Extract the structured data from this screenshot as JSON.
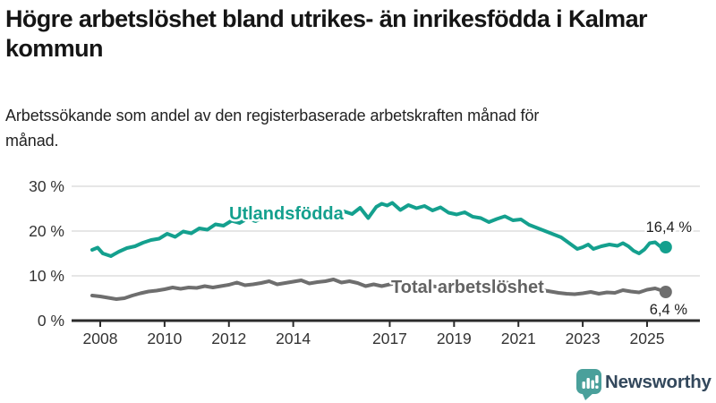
{
  "title": "Högre arbetslöshet bland utrikes- än inrikesfödda i Kalmar kommun",
  "subtitle": "Arbetssökande som andel av den registerbaserade arbetskraften månad för månad.",
  "branding": {
    "logo_text": "Newsworthy"
  },
  "colors": {
    "series_foreign": "#14a08e",
    "series_total": "#6e6e6e",
    "series_total_label": "#636363",
    "grid": "#d8d8d8",
    "axis": "#2b2b2b",
    "tick_label": "#333333",
    "end_label": "#1d1d1d",
    "logo_teal": "#4aa09b",
    "logo_text": "#33485c"
  },
  "chart_data": {
    "type": "line",
    "title": "Högre arbetslöshet bland utrikes- än inrikesfödda i Kalmar kommun",
    "subtitle": "Arbetssökande som andel av den registerbaserade arbetskraften månad för månad.",
    "unit": "%",
    "ylim": [
      0,
      30
    ],
    "grid": "horizontal",
    "legend_position": "inline-labels",
    "y_ticks": [
      {
        "value": 0,
        "label": "0 %"
      },
      {
        "value": 10,
        "label": "10 %"
      },
      {
        "value": 20,
        "label": "20 %"
      },
      {
        "value": 30,
        "label": "30 %"
      }
    ],
    "x_ticks": [
      {
        "value": 2008,
        "label": "2008"
      },
      {
        "value": 2010,
        "label": "2010"
      },
      {
        "value": 2012,
        "label": "2012"
      },
      {
        "value": 2014,
        "label": "2014"
      },
      {
        "value": 2017,
        "label": "2017"
      },
      {
        "value": 2019,
        "label": "2019"
      },
      {
        "value": 2021,
        "label": "2021"
      },
      {
        "value": 2023,
        "label": "2023"
      },
      {
        "value": 2025,
        "label": "2025"
      }
    ],
    "series": [
      {
        "name": "Utlandsfödda",
        "slug": "utlandsfodda",
        "color": "#14a08e",
        "end_label": "16,4 %",
        "last_value": 16.4,
        "points": [
          [
            2007.75,
            15.8
          ],
          [
            2007.92,
            16.3
          ],
          [
            2008.08,
            15.0
          ],
          [
            2008.33,
            14.4
          ],
          [
            2008.58,
            15.4
          ],
          [
            2008.83,
            16.2
          ],
          [
            2009.08,
            16.6
          ],
          [
            2009.33,
            17.4
          ],
          [
            2009.58,
            18.0
          ],
          [
            2009.83,
            18.3
          ],
          [
            2010.08,
            19.4
          ],
          [
            2010.33,
            18.7
          ],
          [
            2010.58,
            19.9
          ],
          [
            2010.83,
            19.5
          ],
          [
            2011.08,
            20.6
          ],
          [
            2011.33,
            20.3
          ],
          [
            2011.58,
            21.5
          ],
          [
            2011.83,
            21.2
          ],
          [
            2012.08,
            22.3
          ],
          [
            2012.33,
            21.8
          ],
          [
            2012.58,
            22.8
          ],
          [
            2012.83,
            22.2
          ],
          [
            2013.08,
            23.2
          ],
          [
            2013.33,
            22.5
          ],
          [
            2013.58,
            23.4
          ],
          [
            2013.83,
            22.8
          ],
          [
            2014.08,
            23.6
          ],
          [
            2014.33,
            23.0
          ],
          [
            2014.58,
            23.9
          ],
          [
            2014.83,
            23.3
          ],
          [
            2015.08,
            24.2
          ],
          [
            2015.33,
            23.6
          ],
          [
            2015.58,
            24.4
          ],
          [
            2015.83,
            23.8
          ],
          [
            2016.08,
            25.2
          ],
          [
            2016.33,
            22.9
          ],
          [
            2016.58,
            25.4
          ],
          [
            2016.75,
            26.1
          ],
          [
            2016.92,
            25.7
          ],
          [
            2017.08,
            26.3
          ],
          [
            2017.33,
            24.7
          ],
          [
            2017.58,
            25.8
          ],
          [
            2017.83,
            25.1
          ],
          [
            2018.08,
            25.6
          ],
          [
            2018.33,
            24.6
          ],
          [
            2018.58,
            25.3
          ],
          [
            2018.83,
            24.1
          ],
          [
            2019.08,
            23.7
          ],
          [
            2019.33,
            24.2
          ],
          [
            2019.58,
            23.2
          ],
          [
            2019.83,
            22.9
          ],
          [
            2020.08,
            22.0
          ],
          [
            2020.33,
            22.7
          ],
          [
            2020.58,
            23.3
          ],
          [
            2020.83,
            22.4
          ],
          [
            2021.08,
            22.6
          ],
          [
            2021.33,
            21.4
          ],
          [
            2021.58,
            20.7
          ],
          [
            2021.83,
            20.0
          ],
          [
            2022.08,
            19.3
          ],
          [
            2022.33,
            18.6
          ],
          [
            2022.58,
            17.3
          ],
          [
            2022.83,
            16.0
          ],
          [
            2023.0,
            16.4
          ],
          [
            2023.17,
            17.0
          ],
          [
            2023.33,
            16.0
          ],
          [
            2023.58,
            16.6
          ],
          [
            2023.83,
            17.0
          ],
          [
            2024.08,
            16.7
          ],
          [
            2024.25,
            17.3
          ],
          [
            2024.42,
            16.6
          ],
          [
            2024.58,
            15.6
          ],
          [
            2024.75,
            15.0
          ],
          [
            2024.92,
            15.9
          ],
          [
            2025.08,
            17.3
          ],
          [
            2025.25,
            17.5
          ],
          [
            2025.42,
            16.5
          ],
          [
            2025.5,
            15.9
          ],
          [
            2025.58,
            16.4
          ]
        ]
      },
      {
        "name": "Total arbetslöshet",
        "slug": "total-arbetsloshet",
        "color": "#6e6e6e",
        "end_label": "6,4 %",
        "last_value": 6.4,
        "points": [
          [
            2007.75,
            5.6
          ],
          [
            2008.0,
            5.4
          ],
          [
            2008.25,
            5.1
          ],
          [
            2008.5,
            4.8
          ],
          [
            2008.75,
            5.0
          ],
          [
            2009.0,
            5.6
          ],
          [
            2009.25,
            6.1
          ],
          [
            2009.5,
            6.5
          ],
          [
            2009.75,
            6.7
          ],
          [
            2010.0,
            7.0
          ],
          [
            2010.25,
            7.4
          ],
          [
            2010.5,
            7.1
          ],
          [
            2010.75,
            7.4
          ],
          [
            2011.0,
            7.3
          ],
          [
            2011.25,
            7.7
          ],
          [
            2011.5,
            7.4
          ],
          [
            2011.75,
            7.7
          ],
          [
            2012.0,
            8.0
          ],
          [
            2012.25,
            8.5
          ],
          [
            2012.5,
            7.9
          ],
          [
            2012.75,
            8.1
          ],
          [
            2013.0,
            8.4
          ],
          [
            2013.25,
            8.8
          ],
          [
            2013.5,
            8.1
          ],
          [
            2013.75,
            8.4
          ],
          [
            2014.0,
            8.7
          ],
          [
            2014.25,
            9.0
          ],
          [
            2014.5,
            8.3
          ],
          [
            2014.75,
            8.6
          ],
          [
            2015.0,
            8.8
          ],
          [
            2015.25,
            9.2
          ],
          [
            2015.5,
            8.5
          ],
          [
            2015.75,
            8.8
          ],
          [
            2016.0,
            8.4
          ],
          [
            2016.25,
            7.7
          ],
          [
            2016.5,
            8.1
          ],
          [
            2016.75,
            7.7
          ],
          [
            2017.0,
            8.1
          ],
          [
            2017.25,
            8.4
          ],
          [
            2017.5,
            8.0
          ],
          [
            2017.75,
            7.8
          ],
          [
            2018.0,
            8.1
          ],
          [
            2018.25,
            7.8
          ],
          [
            2018.5,
            7.5
          ],
          [
            2018.75,
            7.3
          ],
          [
            2019.0,
            7.5
          ],
          [
            2019.25,
            7.2
          ],
          [
            2019.5,
            7.0
          ],
          [
            2019.75,
            7.2
          ],
          [
            2020.0,
            7.5
          ],
          [
            2020.25,
            8.6
          ],
          [
            2020.5,
            8.8
          ],
          [
            2020.75,
            8.3
          ],
          [
            2021.0,
            8.1
          ],
          [
            2021.25,
            7.7
          ],
          [
            2021.5,
            7.2
          ],
          [
            2021.75,
            6.8
          ],
          [
            2022.0,
            6.5
          ],
          [
            2022.25,
            6.2
          ],
          [
            2022.5,
            6.0
          ],
          [
            2022.75,
            5.9
          ],
          [
            2023.0,
            6.1
          ],
          [
            2023.25,
            6.4
          ],
          [
            2023.5,
            6.0
          ],
          [
            2023.75,
            6.3
          ],
          [
            2024.0,
            6.2
          ],
          [
            2024.25,
            6.8
          ],
          [
            2024.5,
            6.5
          ],
          [
            2024.75,
            6.3
          ],
          [
            2025.0,
            6.9
          ],
          [
            2025.25,
            7.2
          ],
          [
            2025.42,
            6.8
          ],
          [
            2025.58,
            6.4
          ]
        ]
      }
    ]
  }
}
